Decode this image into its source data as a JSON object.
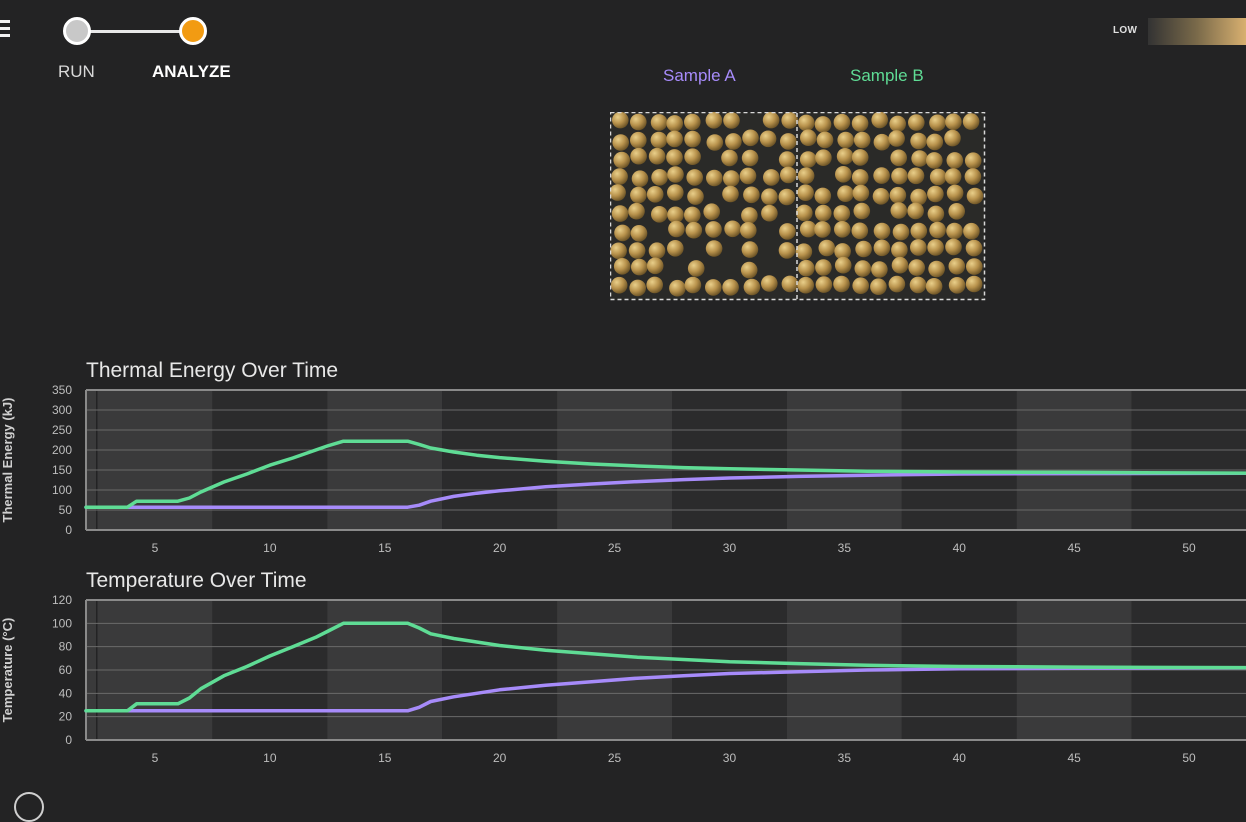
{
  "stepper": {
    "step1_label": "RUN",
    "step2_label": "ANALYZE"
  },
  "legend": {
    "low_label": "LOW"
  },
  "samples": {
    "a_label": "Sample A",
    "b_label": "Sample B"
  },
  "colors": {
    "sample_a": "#a78bfa",
    "sample_b": "#5fdc95",
    "active_step": "#f29b12",
    "particle": "#c4a060"
  },
  "icons": {
    "menu": "hamburger-menu-icon"
  },
  "chart_data": [
    {
      "type": "line",
      "title": "Thermal Energy Over Time",
      "xlabel": "",
      "ylabel": "Thermal Energy (kJ)",
      "xlim": [
        2,
        53
      ],
      "ylim": [
        0,
        350
      ],
      "yticks": [
        0,
        50,
        100,
        150,
        200,
        250,
        300,
        350
      ],
      "xticks": [
        5,
        10,
        15,
        20,
        25,
        30,
        35,
        40,
        45,
        50
      ],
      "grid": true,
      "series": [
        {
          "name": "Sample A",
          "x": [
            2,
            16,
            16.5,
            17,
            18,
            19,
            20,
            22,
            24,
            26,
            28,
            30,
            33,
            36,
            40,
            45,
            53
          ],
          "y": [
            57,
            57,
            62,
            72,
            84,
            92,
            98,
            108,
            115,
            121,
            126,
            130,
            134,
            137,
            140,
            141,
            142
          ]
        },
        {
          "name": "Sample B",
          "x": [
            2,
            3.8,
            4.2,
            6,
            6.5,
            7,
            8,
            9,
            10,
            11,
            12,
            12.5,
            13.2,
            16,
            16.5,
            17,
            18,
            19,
            20,
            22,
            24,
            26,
            28,
            30,
            33,
            36,
            40,
            45,
            53
          ],
          "y": [
            57,
            57,
            72,
            72,
            80,
            95,
            120,
            140,
            162,
            180,
            200,
            210,
            222,
            222,
            214,
            205,
            195,
            187,
            181,
            172,
            165,
            160,
            156,
            153,
            150,
            147,
            145,
            144,
            142
          ]
        }
      ]
    },
    {
      "type": "line",
      "title": "Temperature Over Time",
      "xlabel": "",
      "ylabel": "Temperature (°C)",
      "xlim": [
        2,
        53
      ],
      "ylim": [
        0,
        120
      ],
      "yticks": [
        0,
        20,
        40,
        60,
        80,
        100,
        120
      ],
      "xticks": [
        5,
        10,
        15,
        20,
        25,
        30,
        35,
        40,
        45,
        50
      ],
      "grid": true,
      "series": [
        {
          "name": "Sample A",
          "x": [
            2,
            16,
            16.5,
            17,
            18,
            19,
            20,
            22,
            24,
            26,
            28,
            30,
            33,
            36,
            40,
            45,
            53
          ],
          "y": [
            25,
            25,
            28,
            33,
            37,
            40,
            43,
            47,
            50,
            53,
            55,
            57,
            58.5,
            60,
            61,
            61.5,
            62
          ]
        },
        {
          "name": "Sample B",
          "x": [
            2,
            3.8,
            4.2,
            6,
            6.5,
            7,
            8,
            9,
            10,
            11,
            12,
            12.5,
            13.2,
            16,
            16.5,
            17,
            18,
            19,
            20,
            22,
            24,
            26,
            28,
            30,
            33,
            36,
            40,
            45,
            53
          ],
          "y": [
            25,
            25,
            31,
            31,
            36,
            44,
            55,
            63,
            72,
            80,
            88,
            93,
            100,
            100,
            96,
            91,
            87,
            84,
            81,
            77,
            74,
            71,
            69,
            67,
            65.5,
            64,
            63,
            62.5,
            62
          ]
        }
      ]
    }
  ]
}
